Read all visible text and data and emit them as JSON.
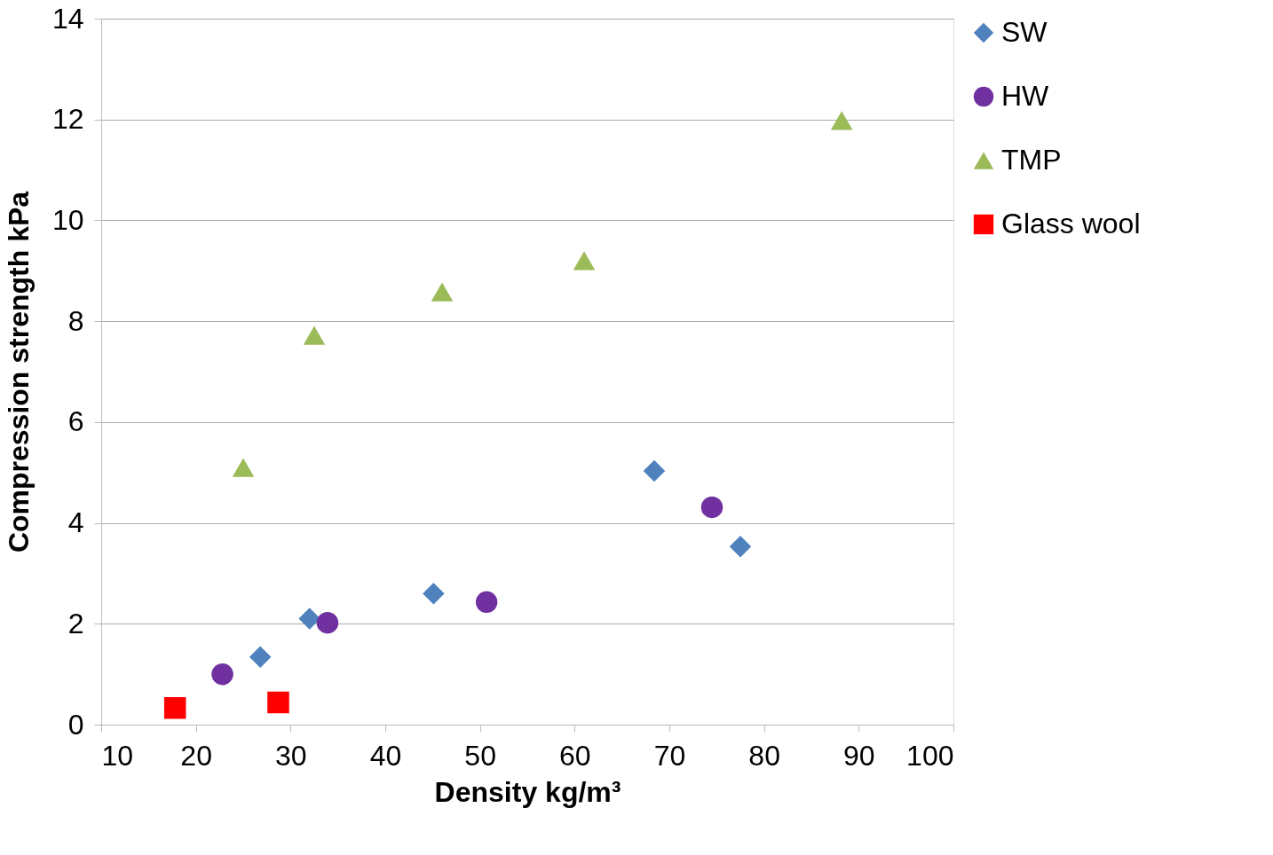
{
  "chart_data": {
    "type": "scatter",
    "xlabel": "Density kg/m³",
    "ylabel": "Compression strength kPa",
    "xlim": [
      10,
      100
    ],
    "xticks": [
      10,
      20,
      30,
      40,
      50,
      60,
      70,
      80,
      90,
      100
    ],
    "ylim": [
      0,
      14
    ],
    "yticks": [
      0,
      2,
      4,
      6,
      8,
      10,
      12,
      14
    ],
    "grid": "y",
    "legend": "right",
    "series": [
      {
        "name": "SW",
        "color": "#4f81bd",
        "marker": "diamond",
        "x": [
          26.8,
          32.0,
          45.1,
          68.4,
          77.5
        ],
        "values": [
          1.34,
          2.1,
          2.6,
          5.03,
          3.53
        ]
      },
      {
        "name": "HW",
        "color": "#7030a0",
        "marker": "circle",
        "x": [
          22.8,
          33.9,
          50.7,
          74.5
        ],
        "values": [
          1.0,
          2.02,
          2.43,
          4.31
        ]
      },
      {
        "name": "TMP",
        "color": "#9bbb59",
        "marker": "triangle",
        "x": [
          25.0,
          32.5,
          46.0,
          61.0,
          88.2
        ],
        "values": [
          5.1,
          7.72,
          8.58,
          9.2,
          11.98
        ]
      },
      {
        "name": "Glass wool",
        "color": "#ff0000",
        "marker": "square",
        "x": [
          17.8,
          28.7
        ],
        "values": [
          0.33,
          0.44
        ]
      }
    ]
  }
}
